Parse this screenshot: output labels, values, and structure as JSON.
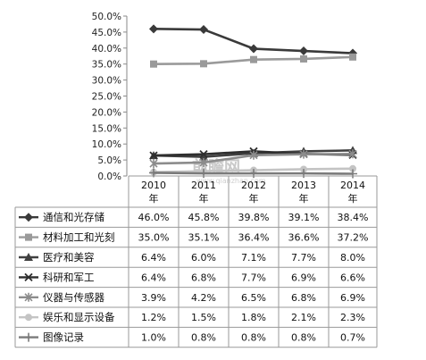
{
  "chart_data": {
    "type": "line",
    "categories": [
      "2010年",
      "2011年",
      "2012年",
      "2013年",
      "2014年"
    ],
    "yticks": [
      "50.0%",
      "45.0%",
      "40.0%",
      "35.0%",
      "30.0%",
      "25.0%",
      "20.0%",
      "15.0%",
      "10.0%",
      "5.0%",
      "0.0%"
    ],
    "ylim": [
      0,
      50
    ],
    "grid": false,
    "legend": "data-table",
    "series": [
      {
        "name": "通信和光存储",
        "values": [
          46.0,
          45.8,
          39.8,
          39.1,
          38.4
        ],
        "labels": [
          "46.0%",
          "45.8%",
          "39.8%",
          "39.1%",
          "38.4%"
        ],
        "color": "#3a3a3a",
        "marker": "diamond"
      },
      {
        "name": "材料加工和光刻",
        "values": [
          35.0,
          35.1,
          36.4,
          36.6,
          37.2
        ],
        "labels": [
          "35.0%",
          "35.1%",
          "36.4%",
          "36.6%",
          "37.2%"
        ],
        "color": "#9a9a9a",
        "marker": "square"
      },
      {
        "name": "医疗和美容",
        "values": [
          6.4,
          6.0,
          7.1,
          7.7,
          8.0
        ],
        "labels": [
          "6.4%",
          "6.0%",
          "7.1%",
          "7.7%",
          "8.0%"
        ],
        "color": "#404040",
        "marker": "triangle"
      },
      {
        "name": "科研和军工",
        "values": [
          6.4,
          6.8,
          7.7,
          6.9,
          6.6
        ],
        "labels": [
          "6.4%",
          "6.8%",
          "7.7%",
          "6.9%",
          "6.6%"
        ],
        "color": "#2e2e2e",
        "marker": "x"
      },
      {
        "name": "仪器与传感器",
        "values": [
          3.9,
          4.2,
          6.5,
          6.8,
          6.9
        ],
        "labels": [
          "3.9%",
          "4.2%",
          "6.5%",
          "6.8%",
          "6.9%"
        ],
        "color": "#8c8c8c",
        "marker": "star"
      },
      {
        "name": "娱乐和显示设备",
        "values": [
          1.2,
          1.5,
          1.8,
          2.1,
          2.3
        ],
        "labels": [
          "1.2%",
          "1.5%",
          "1.8%",
          "2.1%",
          "2.3%"
        ],
        "color": "#c4c4c4",
        "marker": "circle"
      },
      {
        "name": "图像记录",
        "values": [
          1.0,
          0.8,
          0.8,
          0.8,
          0.7
        ],
        "labels": [
          "1.0%",
          "0.8%",
          "0.8%",
          "0.8%",
          "0.7%"
        ],
        "color": "#7a7a7a",
        "marker": "plus"
      }
    ]
  },
  "watermark": {
    "text": "前瞻网",
    "url": "www.qianzhan.com"
  }
}
